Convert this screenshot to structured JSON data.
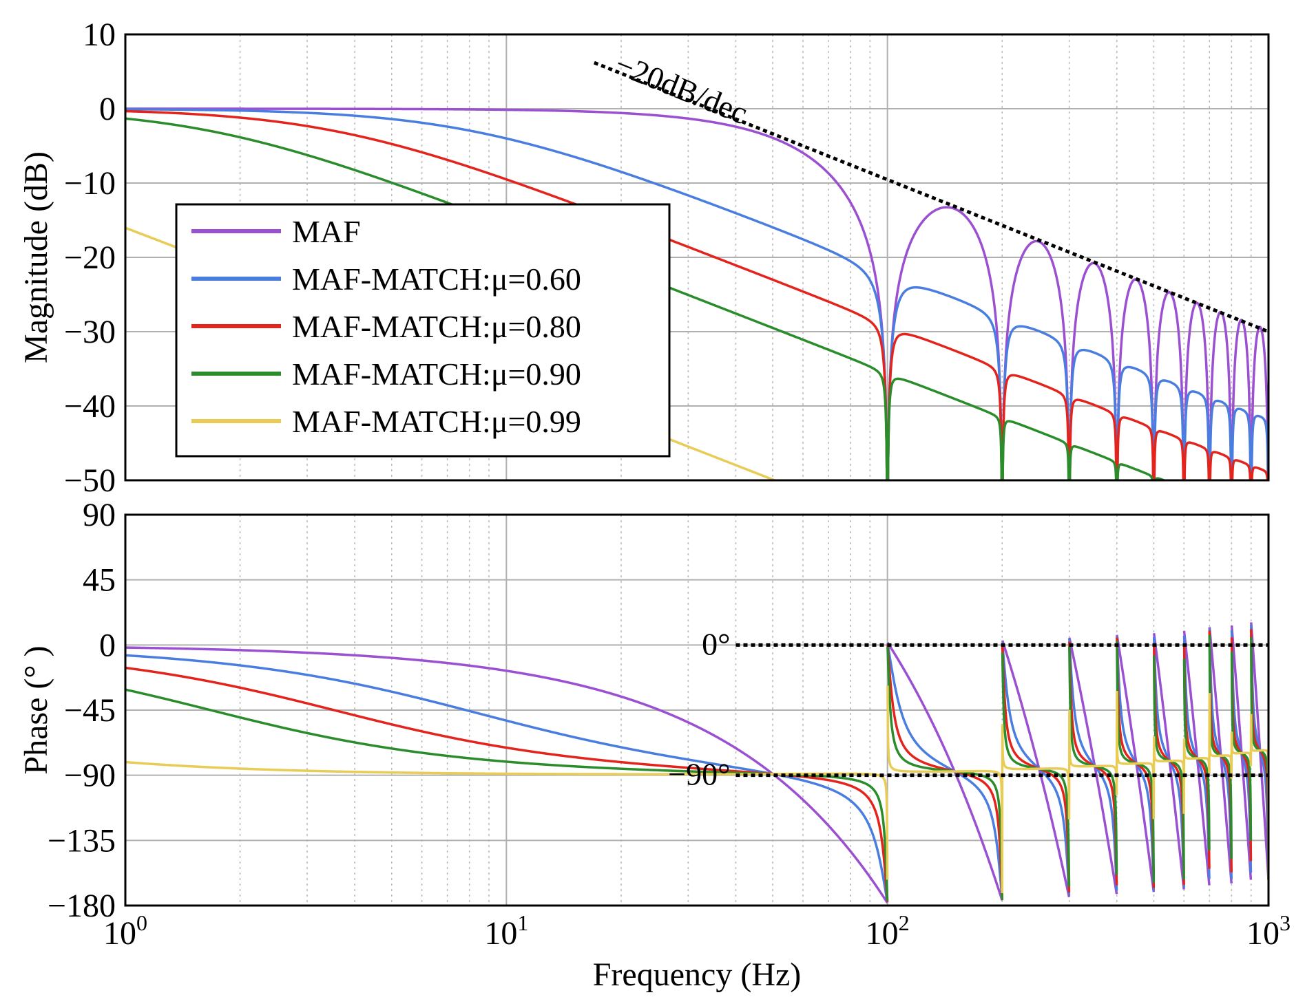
{
  "chart_data": [
    {
      "type": "line",
      "panel": "magnitude",
      "ylabel": "Magnitude (dB)",
      "xscale": "log",
      "xlim": [
        1,
        1000
      ],
      "ylim": [
        -50,
        10
      ],
      "yticks": [
        "10",
        "0",
        "−10",
        "−20",
        "−30",
        "−40",
        "−50"
      ],
      "grid": true,
      "legend_position": "center-left",
      "series": [
        {
          "name": "MAF",
          "mu": 0.0,
          "color": "#9b4fd1"
        },
        {
          "name": "MAF-MATCH:μ=0.60",
          "mu": 0.6,
          "color": "#4a7de0"
        },
        {
          "name": "MAF-MATCH:μ=0.80",
          "mu": 0.8,
          "color": "#e3231c"
        },
        {
          "name": "MAF-MATCH:μ=0.90",
          "mu": 0.9,
          "color": "#2a8c2a"
        },
        {
          "name": "MAF-MATCH:μ=0.99",
          "mu": 0.99,
          "color": "#e8cc55"
        }
      ],
      "annotation": {
        "text": "−20dB/dec",
        "line": {
          "x": [
            17,
            1000
          ],
          "y": [
            6.2,
            -30
          ]
        }
      },
      "notch_frequencies": [
        100,
        200,
        300,
        400,
        500,
        600,
        700,
        800,
        900
      ]
    },
    {
      "type": "line",
      "panel": "phase",
      "ylabel": "Phase (° )",
      "xlabel": "Frequency (Hz)",
      "xscale": "log",
      "xlim": [
        1,
        1000
      ],
      "ylim": [
        -180,
        90
      ],
      "yticks": [
        "90",
        "45",
        "0",
        "−45",
        "−90",
        "−135",
        "−180"
      ],
      "xticks": [
        {
          "base": "10",
          "exp": "0"
        },
        {
          "base": "10",
          "exp": "1"
        },
        {
          "base": "10",
          "exp": "2"
        },
        {
          "base": "10",
          "exp": "3"
        }
      ],
      "grid": true,
      "series_ref": "same five series as magnitude panel",
      "reference_lines": [
        {
          "label": "0°",
          "y": 0,
          "x": [
            40,
            1000
          ]
        },
        {
          "label": "−90°",
          "y": -90,
          "x": [
            40,
            1000
          ]
        }
      ]
    }
  ]
}
